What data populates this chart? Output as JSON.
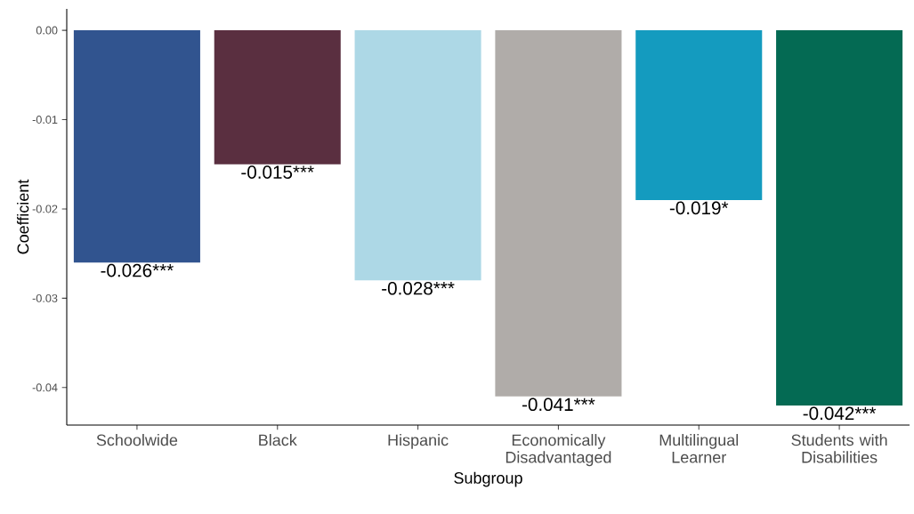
{
  "chart_data": {
    "type": "bar",
    "xlabel": "Subgroup",
    "ylabel": "Coefficient",
    "categories": [
      "Schoolwide",
      "Black",
      "Hispanic",
      "Economically Disadvantaged",
      "Multilingual Learner",
      "Students with Disabilities"
    ],
    "values": [
      -0.026,
      -0.015,
      -0.028,
      -0.041,
      -0.019,
      -0.042
    ],
    "colors": [
      "#31548f",
      "#5a2f40",
      "#add8e6",
      "#b0aca9",
      "#149bbf",
      "#046a53"
    ],
    "value_labels": [
      "-0.026***",
      "-0.015***",
      "-0.028***",
      "-0.041***",
      "-0.019*",
      "-0.042***"
    ],
    "ylim": [
      -0.0442,
      0.0024
    ],
    "yticks": [
      {
        "value": -0.04,
        "label": "-0.04"
      },
      {
        "value": -0.03,
        "label": "-0.03"
      },
      {
        "value": -0.02,
        "label": "-0.02"
      },
      {
        "value": -0.01,
        "label": "-0.01"
      },
      {
        "value": 0,
        "label": "0.00"
      }
    ],
    "grid": false
  }
}
